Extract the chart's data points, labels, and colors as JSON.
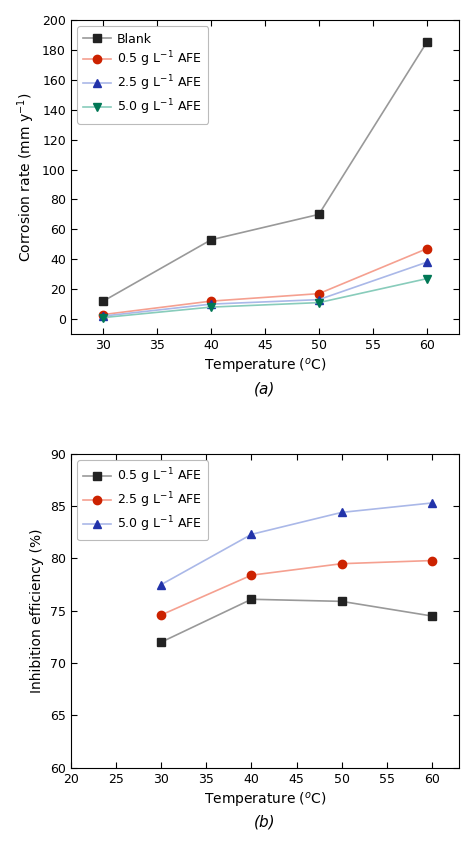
{
  "plot_a": {
    "title": "(a)",
    "xlabel": "Temperature (°C)",
    "ylabel": "Corrosion rate (mm y-1)",
    "xlim": [
      27,
      63
    ],
    "ylim": [
      -10,
      200
    ],
    "xticks": [
      30,
      35,
      40,
      45,
      50,
      55,
      60
    ],
    "yticks": [
      0,
      20,
      40,
      60,
      80,
      100,
      120,
      140,
      160,
      180,
      200
    ],
    "series": [
      {
        "label": "Blank",
        "x": [
          30,
          40,
          50,
          60
        ],
        "y": [
          12,
          53,
          70,
          185
        ],
        "marker": "s",
        "markercolor": "#222222",
        "linecolor": "#999999"
      },
      {
        "label": "0.5 g L-1 AFE",
        "x": [
          30,
          40,
          50,
          60
        ],
        "y": [
          3,
          12,
          17,
          47
        ],
        "marker": "o",
        "markercolor": "#cc2200",
        "linecolor": "#f5a090"
      },
      {
        "label": "2.5 g L-1 AFE",
        "x": [
          30,
          40,
          50,
          60
        ],
        "y": [
          2,
          10,
          13,
          38
        ],
        "marker": "^",
        "markercolor": "#2233aa",
        "linecolor": "#aab8e8"
      },
      {
        "label": "5.0 g L-1 AFE",
        "x": [
          30,
          40,
          50,
          60
        ],
        "y": [
          1,
          8,
          11,
          27
        ],
        "marker": "v",
        "markercolor": "#007755",
        "linecolor": "#88ccbb"
      }
    ]
  },
  "plot_b": {
    "title": "(b)",
    "xlabel": "Temperature (°C)",
    "ylabel": "Inhibition efficiency (%)",
    "xlim": [
      20,
      63
    ],
    "ylim": [
      60,
      90
    ],
    "xticks": [
      20,
      25,
      30,
      35,
      40,
      45,
      50,
      55,
      60
    ],
    "yticks": [
      60,
      65,
      70,
      75,
      80,
      85,
      90
    ],
    "series": [
      {
        "label": "0.5 g L-1 AFE",
        "x": [
          30,
          40,
          50,
          60
        ],
        "y": [
          72.0,
          76.1,
          75.9,
          74.5
        ],
        "marker": "s",
        "markercolor": "#222222",
        "linecolor": "#999999"
      },
      {
        "label": "2.5 g L-1 AFE",
        "x": [
          30,
          40,
          50,
          60
        ],
        "y": [
          74.6,
          78.4,
          79.5,
          79.8
        ],
        "marker": "o",
        "markercolor": "#cc2200",
        "linecolor": "#f5a090"
      },
      {
        "label": "5.0 g L-1 AFE",
        "x": [
          30,
          40,
          50,
          60
        ],
        "y": [
          77.5,
          82.3,
          84.4,
          85.3
        ],
        "marker": "^",
        "markercolor": "#2233aa",
        "linecolor": "#aab8e8"
      }
    ]
  },
  "background_color": "#ffffff",
  "fontsize_labels": 10,
  "fontsize_ticks": 9,
  "fontsize_legend": 9,
  "fontsize_title": 11,
  "markersize": 6,
  "linewidth": 1.2
}
